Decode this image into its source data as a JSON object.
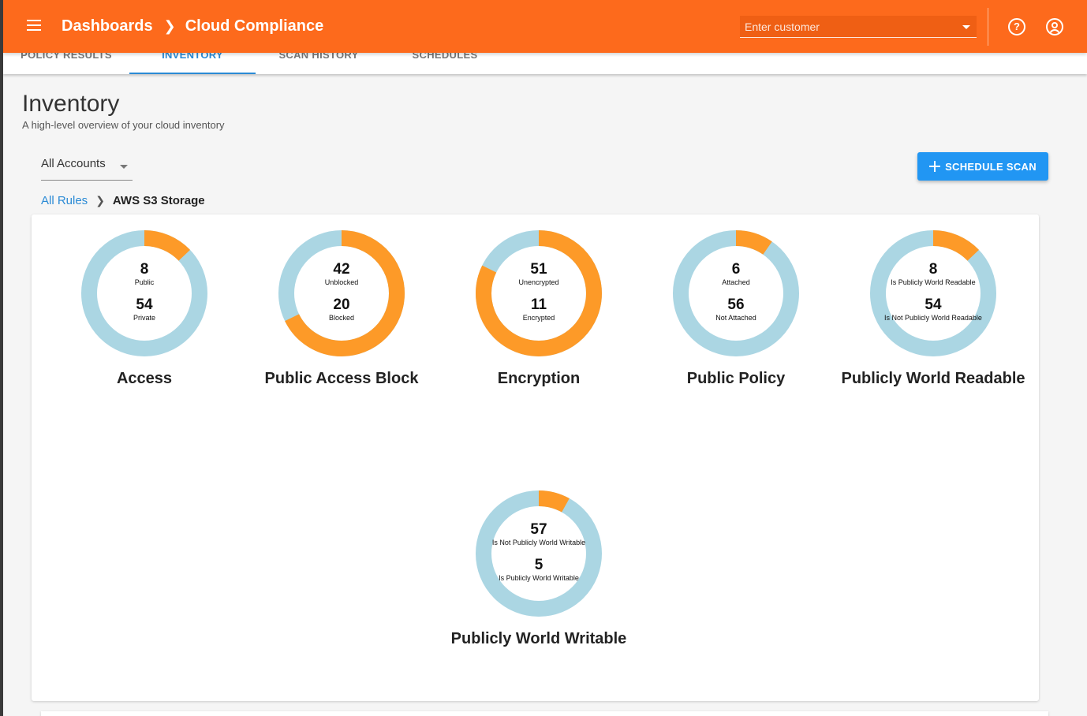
{
  "appbar": {
    "breadcrumb_root": "Dashboards",
    "breadcrumb_current": "Cloud Compliance",
    "customer_placeholder": "Enter customer"
  },
  "tabs": [
    {
      "label": "POLICY RESULTS"
    },
    {
      "label": "INVENTORY"
    },
    {
      "label": "SCAN HISTORY"
    },
    {
      "label": "SCHEDULES"
    }
  ],
  "header": {
    "title": "Inventory",
    "subtitle": "A high-level overview of your cloud inventory"
  },
  "filters": {
    "accounts_selected": "All Accounts"
  },
  "actions": {
    "schedule_scan_label": "SCHEDULE SCAN"
  },
  "rules_breadcrumb": {
    "root": "All Rules",
    "current": "AWS S3 Storage"
  },
  "colors": {
    "highlight": "#fd9a28",
    "base": "#abd6e3",
    "appbar": "#fd6a1c",
    "accent": "#2196f3"
  },
  "chart_data": [
    {
      "type": "pie",
      "title": "Access",
      "top_value": 8,
      "top_label": "Public",
      "bottom_value": 54,
      "bottom_label": "Private",
      "highlighted": "top"
    },
    {
      "type": "pie",
      "title": "Public Access Block",
      "top_value": 42,
      "top_label": "Unblocked",
      "bottom_value": 20,
      "bottom_label": "Blocked",
      "highlighted": "top"
    },
    {
      "type": "pie",
      "title": "Encryption",
      "top_value": 51,
      "top_label": "Unencrypted",
      "bottom_value": 11,
      "bottom_label": "Encrypted",
      "highlighted": "top"
    },
    {
      "type": "pie",
      "title": "Public Policy",
      "top_value": 6,
      "top_label": "Attached",
      "bottom_value": 56,
      "bottom_label": "Not Attached",
      "highlighted": "top"
    },
    {
      "type": "pie",
      "title": "Publicly World Readable",
      "top_value": 8,
      "top_label": "Is Publicly World Readable",
      "bottom_value": 54,
      "bottom_label": "Is Not Publicly World Readable",
      "highlighted": "top"
    },
    {
      "type": "pie",
      "title": "Publicly World Writable",
      "top_value": 57,
      "top_label": "Is Not Publicly World Writable",
      "bottom_value": 5,
      "bottom_label": "Is Publicly World Writable",
      "highlighted": "bottom"
    }
  ]
}
